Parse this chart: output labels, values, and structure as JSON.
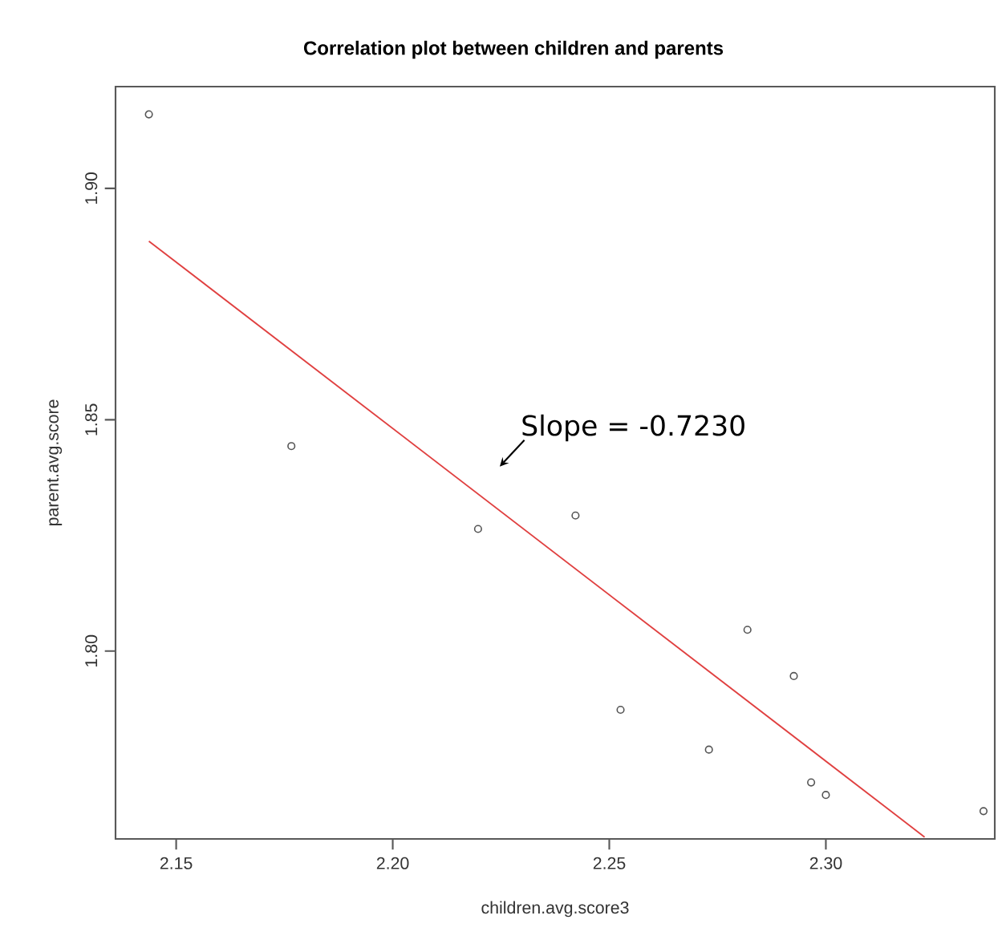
{
  "chart_data": {
    "type": "scatter",
    "title": "Correlation plot between children and parents",
    "xlabel": "children.avg.score3",
    "ylabel": "parent.avg.score",
    "xlim": [
      2.136,
      2.339
    ],
    "ylim": [
      1.7594,
      1.922
    ],
    "xticks": [
      2.15,
      {
        "value": 2.2,
        "label": "2.20"
      },
      2.25,
      {
        "value": 2.3,
        "label": "2.30"
      }
    ],
    "yticks": [
      {
        "value": 1.8,
        "label": "1.80"
      },
      1.85,
      {
        "value": 1.9,
        "label": "1.90"
      }
    ],
    "grid": false,
    "series": [
      {
        "color": "#555555",
        "marker": "circle",
        "x": [
          2.1437,
          2.1766,
          2.2197,
          2.2422,
          2.2526,
          2.273,
          2.2819,
          2.2926,
          2.2966,
          2.3,
          2.3364
        ],
        "values": [
          1.916,
          1.8443,
          1.8264,
          1.8293,
          1.7873,
          1.7787,
          1.8046,
          1.7946,
          1.7716,
          1.7689,
          1.7654
        ]
      },
      {
        "type": "line",
        "color": "#e04040",
        "marker": "none",
        "line_style": "solid",
        "x": [
          2.1437,
          2.3228
        ],
        "values": [
          1.8886,
          1.7598
        ]
      }
    ],
    "annotations": [
      "Slope = -0.7230"
    ]
  }
}
